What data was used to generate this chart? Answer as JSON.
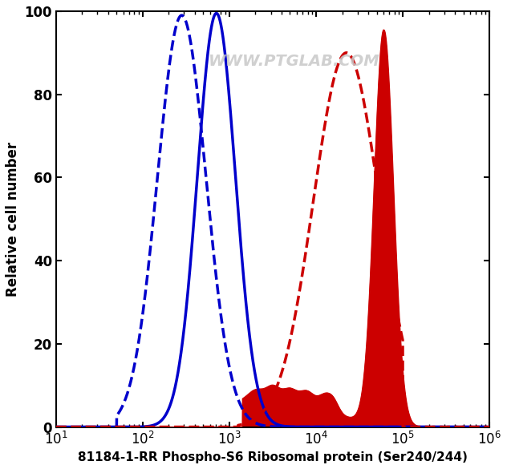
{
  "ylabel": "Relative cell number",
  "xlabel": "81184-1-RR Phospho-S6 Ribosomal protein (Ser240/244)",
  "xmin": 10.0,
  "xmax": 1000000.0,
  "ymin": 0,
  "ymax": 100,
  "yticks": [
    0,
    20,
    40,
    60,
    80,
    100
  ],
  "watermark": "WWW.PTGLAB.COM",
  "blue_dashed_peak_log": 2.45,
  "blue_dashed_sigma": 0.28,
  "blue_dashed_height": 99,
  "blue_solid_peak_log": 2.85,
  "blue_solid_sigma": 0.22,
  "blue_solid_height": 99.5,
  "red_dashed_peak_log": 4.35,
  "red_dashed_sigma": 0.38,
  "red_dashed_height": 90,
  "red_filled_peak_log": 4.78,
  "red_filled_peak_sigma": 0.11,
  "red_filled_peak_height": 95,
  "red_filled_broad_peak_log": 3.5,
  "red_filled_broad_sigma": 0.55,
  "red_filled_broad_height": 8,
  "red_filled_noise_amplitude": 2.5,
  "background_color": "#ffffff",
  "blue_color": "#0000cc",
  "red_color": "#cc0000"
}
